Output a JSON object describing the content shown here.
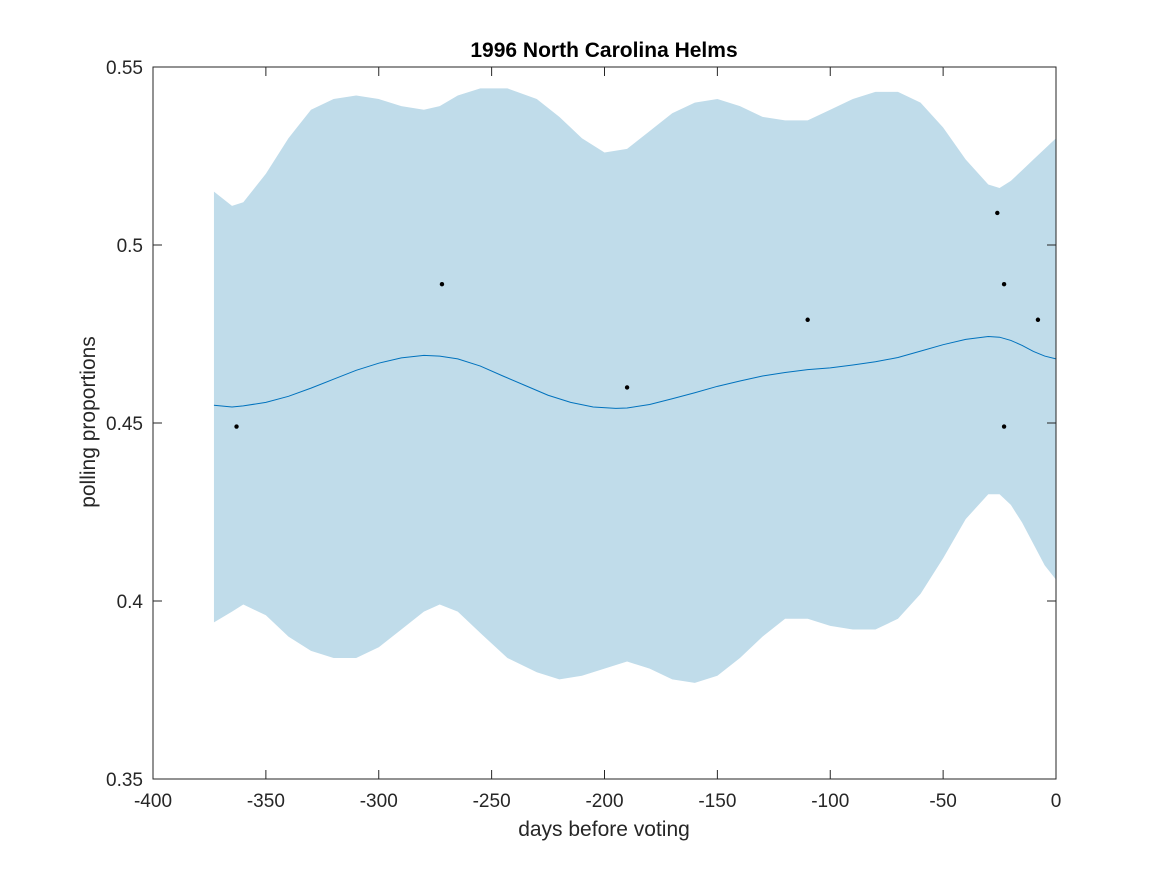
{
  "chart_data": {
    "type": "line",
    "title": "1996 North Carolina Helms",
    "xlabel": "days before voting",
    "ylabel": "polling proportions",
    "xlim": [
      -400,
      0
    ],
    "ylim": [
      0.35,
      0.55
    ],
    "x_ticks": [
      -400,
      -350,
      -300,
      -250,
      -200,
      -150,
      -100,
      -50,
      0
    ],
    "x_tick_labels": [
      "-400",
      "-350",
      "-300",
      "-250",
      "-200",
      "-150",
      "-100",
      "-50",
      "0"
    ],
    "y_ticks": [
      0.35,
      0.4,
      0.45,
      0.5,
      0.55
    ],
    "y_tick_labels": [
      "0.35",
      "0.4",
      "0.45",
      "0.5",
      "0.55"
    ],
    "grid": false,
    "colors": {
      "band": "#c0dcea",
      "line": "#0072bd",
      "points": "#000000",
      "axes": "#262626"
    },
    "band": {
      "x": [
        -373,
        -365,
        -360,
        -350,
        -340,
        -330,
        -320,
        -310,
        -300,
        -290,
        -280,
        -273,
        -265,
        -255,
        -243,
        -230,
        -220,
        -210,
        -200,
        -190,
        -180,
        -170,
        -160,
        -150,
        -140,
        -130,
        -120,
        -110,
        -100,
        -90,
        -80,
        -70,
        -60,
        -50,
        -40,
        -30,
        -25,
        -20,
        -15,
        -10,
        -5,
        0
      ],
      "upper": [
        0.515,
        0.511,
        0.512,
        0.52,
        0.53,
        0.538,
        0.541,
        0.542,
        0.541,
        0.539,
        0.538,
        0.539,
        0.542,
        0.544,
        0.544,
        0.541,
        0.536,
        0.53,
        0.526,
        0.527,
        0.532,
        0.537,
        0.54,
        0.541,
        0.539,
        0.536,
        0.535,
        0.535,
        0.538,
        0.541,
        0.543,
        0.543,
        0.54,
        0.533,
        0.524,
        0.517,
        0.516,
        0.518,
        0.521,
        0.524,
        0.527,
        0.53
      ],
      "lower": [
        0.394,
        0.397,
        0.399,
        0.396,
        0.39,
        0.386,
        0.384,
        0.384,
        0.387,
        0.392,
        0.397,
        0.399,
        0.397,
        0.391,
        0.384,
        0.38,
        0.378,
        0.379,
        0.381,
        0.383,
        0.381,
        0.378,
        0.377,
        0.379,
        0.384,
        0.39,
        0.395,
        0.395,
        0.393,
        0.392,
        0.392,
        0.395,
        0.402,
        0.412,
        0.423,
        0.43,
        0.43,
        0.427,
        0.422,
        0.416,
        0.41,
        0.406
      ]
    },
    "series": [
      {
        "x": [
          -373,
          -365,
          -360,
          -350,
          -340,
          -330,
          -320,
          -310,
          -300,
          -290,
          -280,
          -273,
          -265,
          -255,
          -245,
          -235,
          -225,
          -215,
          -205,
          -195,
          -190,
          -180,
          -170,
          -160,
          -150,
          -140,
          -130,
          -120,
          -110,
          -100,
          -90,
          -80,
          -70,
          -60,
          -50,
          -40,
          -30,
          -25,
          -20,
          -15,
          -10,
          -5,
          0
        ],
        "values": [
          0.455,
          0.4545,
          0.4548,
          0.4558,
          0.4575,
          0.4598,
          0.4623,
          0.4648,
          0.4668,
          0.4683,
          0.469,
          0.4688,
          0.468,
          0.466,
          0.4632,
          0.4605,
          0.4578,
          0.4558,
          0.4545,
          0.4541,
          0.4542,
          0.4552,
          0.4568,
          0.4585,
          0.4603,
          0.4618,
          0.4632,
          0.4642,
          0.465,
          0.4655,
          0.4663,
          0.4672,
          0.4684,
          0.4702,
          0.472,
          0.4735,
          0.4743,
          0.4741,
          0.4732,
          0.4718,
          0.4701,
          0.4688,
          0.468
        ]
      }
    ],
    "points": {
      "x": [
        -363,
        -272,
        -190,
        -110,
        -26,
        -23,
        -23,
        -8
      ],
      "y": [
        0.449,
        0.489,
        0.46,
        0.479,
        0.509,
        0.489,
        0.449,
        0.479
      ]
    }
  }
}
